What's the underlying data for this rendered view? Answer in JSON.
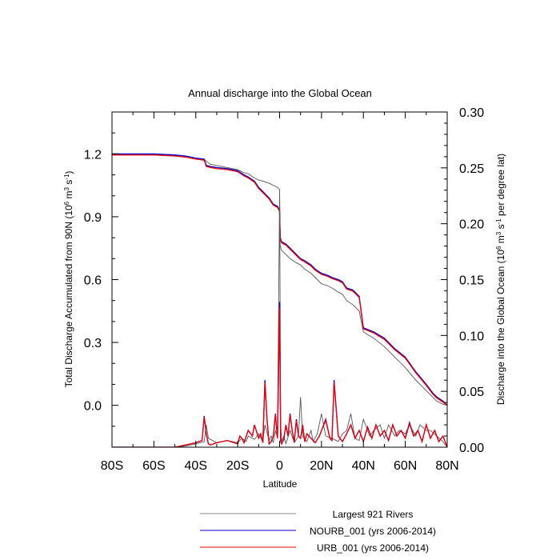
{
  "chart_data": {
    "type": "line",
    "title": "Annual discharge into the Global Ocean",
    "xlabel": "Latitude",
    "ylabel_left": "Total Discharge Accumulated from 90N (10^6 m^3 s^-1)",
    "ylabel_left_parts": [
      "Total Discharge Accumulated from 90N (10",
      "6",
      " m",
      "3",
      " s",
      "-1",
      ")"
    ],
    "ylabel_right": "Discharge into the Global Ocean (10^6 m^3 s^-1 per degree lat)",
    "ylabel_right_parts": [
      "Discharge into the Global Ocean (10",
      "6",
      " m",
      "3",
      " s",
      "-1",
      " per degree lat)"
    ],
    "xlim": [
      -80,
      80
    ],
    "ylim_left": [
      -0.2,
      1.4
    ],
    "ylim_right": [
      0.0,
      0.3
    ],
    "x_ticks": [
      -80,
      -60,
      -40,
      -20,
      0,
      20,
      40,
      60,
      80
    ],
    "x_tick_labels": [
      "80S",
      "60S",
      "40S",
      "20S",
      "0",
      "20N",
      "40N",
      "60N",
      "80N"
    ],
    "y_left_ticks": [
      0.0,
      0.3,
      0.6,
      0.9,
      1.2
    ],
    "y_left_tick_labels": [
      "0.0",
      "0.3",
      "0.6",
      "0.9",
      "1.2"
    ],
    "y_right_ticks": [
      0.0,
      0.05,
      0.1,
      0.15,
      0.2,
      0.25,
      0.3
    ],
    "y_right_tick_labels": [
      "0.00",
      "0.05",
      "0.10",
      "0.15",
      "0.20",
      "0.25",
      "0.30"
    ],
    "legend": [
      {
        "label": "Largest 921 Rivers",
        "color": "#888888"
      },
      {
        "label": "NOURB_001 (yrs 2006-2014)",
        "color": "#0000cc"
      },
      {
        "label": "URB_001 (yrs 2006-2014)",
        "color": "#ee0000"
      }
    ],
    "series": [
      {
        "name": "Largest 921 Rivers - accumulated",
        "axis": "left",
        "color": "#555555",
        "x": [
          -80,
          -60,
          -50,
          -45,
          -40,
          -36,
          -35,
          -33,
          -30,
          -25,
          -20,
          -17,
          -15,
          -12,
          -10,
          -8,
          -5,
          -3,
          -1,
          0,
          0.3,
          1,
          3,
          5,
          8,
          10,
          12,
          15,
          17,
          20,
          23,
          25,
          28,
          30,
          32,
          35,
          38,
          40,
          45,
          50,
          55,
          60,
          65,
          70,
          73,
          75,
          78,
          80
        ],
        "y": [
          1.195,
          1.195,
          1.19,
          1.185,
          1.18,
          1.175,
          1.165,
          1.15,
          1.145,
          1.135,
          1.125,
          1.11,
          1.105,
          1.085,
          1.075,
          1.07,
          1.06,
          1.05,
          1.04,
          1.03,
          0.76,
          0.74,
          0.72,
          0.7,
          0.68,
          0.67,
          0.65,
          0.63,
          0.61,
          0.58,
          0.57,
          0.56,
          0.54,
          0.53,
          0.5,
          0.48,
          0.45,
          0.35,
          0.32,
          0.28,
          0.23,
          0.18,
          0.12,
          0.07,
          0.04,
          0.02,
          0.005,
          0.0
        ]
      },
      {
        "name": "NOURB_001 - accumulated",
        "axis": "left",
        "color": "#0000cc",
        "x": [
          -80,
          -60,
          -50,
          -45,
          -40,
          -36,
          -35,
          -33,
          -30,
          -25,
          -20,
          -17,
          -15,
          -12,
          -10,
          -8,
          -5,
          -3,
          -1,
          0,
          0.3,
          1,
          3,
          5,
          8,
          10,
          12,
          15,
          17,
          20,
          23,
          25,
          28,
          30,
          32,
          35,
          38,
          40,
          45,
          50,
          55,
          60,
          65,
          70,
          73,
          75,
          78,
          80
        ],
        "y": [
          1.2,
          1.2,
          1.195,
          1.19,
          1.18,
          1.175,
          1.145,
          1.14,
          1.135,
          1.13,
          1.12,
          1.1,
          1.09,
          1.07,
          1.04,
          1.02,
          0.99,
          0.96,
          0.95,
          0.93,
          0.8,
          0.78,
          0.77,
          0.75,
          0.72,
          0.7,
          0.69,
          0.67,
          0.65,
          0.63,
          0.62,
          0.61,
          0.6,
          0.59,
          0.56,
          0.55,
          0.52,
          0.37,
          0.35,
          0.32,
          0.27,
          0.23,
          0.16,
          0.1,
          0.06,
          0.04,
          0.02,
          0.0
        ]
      },
      {
        "name": "URB_001 - accumulated",
        "axis": "left",
        "color": "#ee0000",
        "x": [
          -80,
          -60,
          -50,
          -45,
          -40,
          -36,
          -35,
          -33,
          -30,
          -25,
          -20,
          -17,
          -15,
          -12,
          -10,
          -8,
          -5,
          -3,
          -1,
          0,
          0.3,
          1,
          3,
          5,
          8,
          10,
          12,
          15,
          17,
          20,
          23,
          25,
          28,
          30,
          32,
          35,
          38,
          40,
          45,
          50,
          55,
          60,
          65,
          70,
          73,
          75,
          78,
          80
        ],
        "y": [
          1.195,
          1.195,
          1.19,
          1.185,
          1.175,
          1.17,
          1.14,
          1.135,
          1.13,
          1.125,
          1.115,
          1.095,
          1.085,
          1.065,
          1.035,
          1.015,
          0.985,
          0.955,
          0.945,
          0.925,
          0.795,
          0.775,
          0.765,
          0.745,
          0.715,
          0.695,
          0.685,
          0.665,
          0.645,
          0.625,
          0.615,
          0.605,
          0.595,
          0.585,
          0.555,
          0.545,
          0.515,
          0.365,
          0.345,
          0.315,
          0.265,
          0.225,
          0.155,
          0.095,
          0.055,
          0.035,
          0.015,
          0.0
        ]
      },
      {
        "name": "Largest 921 Rivers - per degree",
        "axis": "right",
        "color": "#555555",
        "x": [
          -80,
          -50,
          -45,
          -40,
          -36,
          -35,
          -34,
          -30,
          -25,
          -20,
          -18,
          -16,
          -15,
          -12,
          -10,
          -8,
          -7,
          -5,
          -4,
          -3,
          -2,
          -1,
          0,
          0.5,
          1,
          2,
          3,
          5,
          7,
          9,
          10,
          11,
          13,
          15,
          16,
          18,
          20,
          22,
          25,
          28,
          30,
          32,
          34,
          36,
          38,
          40,
          43,
          45,
          48,
          50,
          52,
          55,
          57,
          60,
          62,
          65,
          67,
          70,
          72,
          75,
          78,
          80
        ],
        "y": [
          0.0,
          0.0,
          0.001,
          0.003,
          0.005,
          0.02,
          0.008,
          0.004,
          0.006,
          0.004,
          0.008,
          0.005,
          0.01,
          0.007,
          0.012,
          0.005,
          0.02,
          0.006,
          0.01,
          0.004,
          0.015,
          0.008,
          0.23,
          0.02,
          0.005,
          0.01,
          0.003,
          0.015,
          0.004,
          0.01,
          0.045,
          0.01,
          0.005,
          0.015,
          0.005,
          0.012,
          0.03,
          0.01,
          0.008,
          0.005,
          0.012,
          0.015,
          0.03,
          0.008,
          0.006,
          0.025,
          0.01,
          0.015,
          0.02,
          0.008,
          0.02,
          0.01,
          0.015,
          0.012,
          0.02,
          0.01,
          0.02,
          0.015,
          0.015,
          0.01,
          0.005,
          0.0
        ]
      },
      {
        "name": "NOURB_001 - per degree",
        "axis": "right",
        "color": "#0000cc",
        "x": [
          -80,
          -50,
          -45,
          -40,
          -37,
          -36,
          -35,
          -34,
          -33,
          -30,
          -25,
          -20,
          -19,
          -18,
          -17,
          -15,
          -13,
          -12,
          -10,
          -9,
          -8,
          -7,
          -6,
          -5,
          -4,
          -3,
          -2,
          -1,
          0,
          0.5,
          1,
          2,
          3,
          4,
          5,
          6,
          7,
          8,
          9,
          10,
          11,
          12,
          13,
          15,
          17,
          19,
          20,
          22,
          24,
          25,
          26,
          28,
          30,
          32,
          34,
          36,
          38,
          40,
          42,
          44,
          46,
          48,
          50,
          52,
          54,
          56,
          58,
          60,
          62,
          64,
          66,
          68,
          70,
          72,
          74,
          76,
          78,
          80
        ],
        "y": [
          0.0,
          0.0,
          0.002,
          0.004,
          0.006,
          0.028,
          0.012,
          0.003,
          0.002,
          0.004,
          0.006,
          0.003,
          0.01,
          0.008,
          0.004,
          0.015,
          0.01,
          0.02,
          0.008,
          0.012,
          0.004,
          0.06,
          0.025,
          0.003,
          0.005,
          0.01,
          0.03,
          0.008,
          0.13,
          0.005,
          0.003,
          0.007,
          0.02,
          0.01,
          0.03,
          0.015,
          0.005,
          0.025,
          0.01,
          0.008,
          0.02,
          0.005,
          0.012,
          0.008,
          0.004,
          0.01,
          0.015,
          0.025,
          0.008,
          0.006,
          0.06,
          0.01,
          0.005,
          0.012,
          0.02,
          0.008,
          0.015,
          0.005,
          0.018,
          0.008,
          0.02,
          0.01,
          0.015,
          0.006,
          0.02,
          0.01,
          0.015,
          0.008,
          0.022,
          0.01,
          0.015,
          0.005,
          0.02,
          0.008,
          0.015,
          0.005,
          0.01,
          0.0
        ]
      },
      {
        "name": "URB_001 - per degree",
        "axis": "right",
        "color": "#ee0000",
        "x": [
          -80,
          -50,
          -45,
          -40,
          -37,
          -36,
          -35,
          -34,
          -33,
          -30,
          -25,
          -20,
          -19,
          -18,
          -17,
          -15,
          -13,
          -12,
          -10,
          -9,
          -8,
          -7,
          -6,
          -5,
          -4,
          -3,
          -2,
          -1,
          0,
          0.5,
          1,
          2,
          3,
          4,
          5,
          6,
          7,
          8,
          9,
          10,
          11,
          12,
          13,
          15,
          17,
          19,
          20,
          22,
          24,
          25,
          26,
          28,
          30,
          32,
          34,
          36,
          38,
          40,
          42,
          44,
          46,
          48,
          50,
          52,
          54,
          56,
          58,
          60,
          62,
          64,
          66,
          68,
          70,
          72,
          74,
          76,
          78,
          80
        ],
        "y": [
          0.0,
          0.0,
          0.002,
          0.004,
          0.006,
          0.027,
          0.012,
          0.003,
          0.002,
          0.004,
          0.006,
          0.003,
          0.01,
          0.008,
          0.004,
          0.015,
          0.01,
          0.02,
          0.008,
          0.012,
          0.004,
          0.058,
          0.024,
          0.003,
          0.005,
          0.01,
          0.029,
          0.008,
          0.125,
          0.005,
          0.003,
          0.007,
          0.02,
          0.01,
          0.029,
          0.015,
          0.005,
          0.024,
          0.01,
          0.008,
          0.02,
          0.005,
          0.012,
          0.008,
          0.004,
          0.01,
          0.015,
          0.024,
          0.008,
          0.006,
          0.058,
          0.01,
          0.005,
          0.012,
          0.02,
          0.008,
          0.015,
          0.005,
          0.018,
          0.008,
          0.02,
          0.01,
          0.015,
          0.006,
          0.02,
          0.01,
          0.015,
          0.008,
          0.021,
          0.01,
          0.015,
          0.005,
          0.02,
          0.008,
          0.015,
          0.005,
          0.01,
          0.0
        ]
      }
    ]
  }
}
